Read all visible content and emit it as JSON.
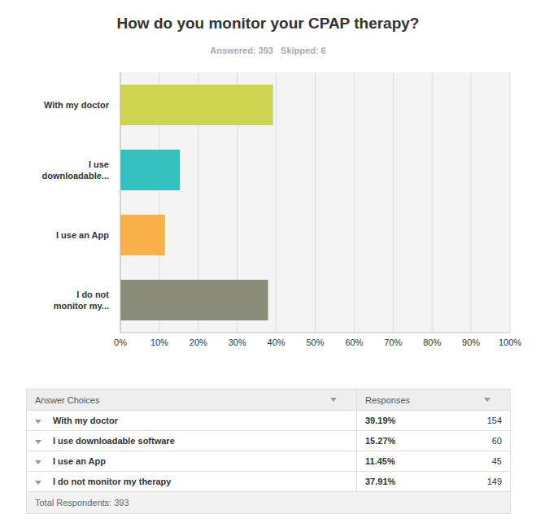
{
  "chart_data": {
    "type": "bar",
    "title": "How do you monitor your CPAP therapy?",
    "subtitle": "Answered: 393   Skipped: 6",
    "orientation": "horizontal",
    "categories": [
      "With my doctor",
      "I use downloadable...",
      "I use an App",
      "I do not monitor my..."
    ],
    "values": [
      39.19,
      15.27,
      11.45,
      37.91
    ],
    "colors": [
      "#cdd452",
      "#35bfbf",
      "#f9b04a",
      "#8b8c7a"
    ],
    "xlim": [
      0,
      100
    ],
    "xticks": [
      {
        "value": 0,
        "label": "0%"
      },
      {
        "value": 10,
        "label": "10%"
      },
      {
        "value": 20,
        "label": "20%"
      },
      {
        "value": 30,
        "label": "30%"
      },
      {
        "value": 40,
        "label": "40%"
      },
      {
        "value": 50,
        "label": "50%"
      },
      {
        "value": 60,
        "label": "60%"
      },
      {
        "value": 70,
        "label": "70%"
      },
      {
        "value": 80,
        "label": "80%"
      },
      {
        "value": 90,
        "label": "90%"
      },
      {
        "value": 100,
        "label": "100%"
      }
    ],
    "grid": true,
    "legend": false,
    "data_labels": false
  },
  "table": {
    "header": [
      "Answer Choices",
      "Responses"
    ],
    "rows": [
      [
        "With my doctor",
        "39.19%",
        "154"
      ],
      [
        "I use downloadable software",
        "15.27%",
        "60"
      ],
      [
        "I use an App",
        "11.45%",
        "45"
      ],
      [
        "I do not monitor my therapy",
        "37.91%",
        "149"
      ]
    ],
    "footer": "Total Respondents: 393"
  }
}
